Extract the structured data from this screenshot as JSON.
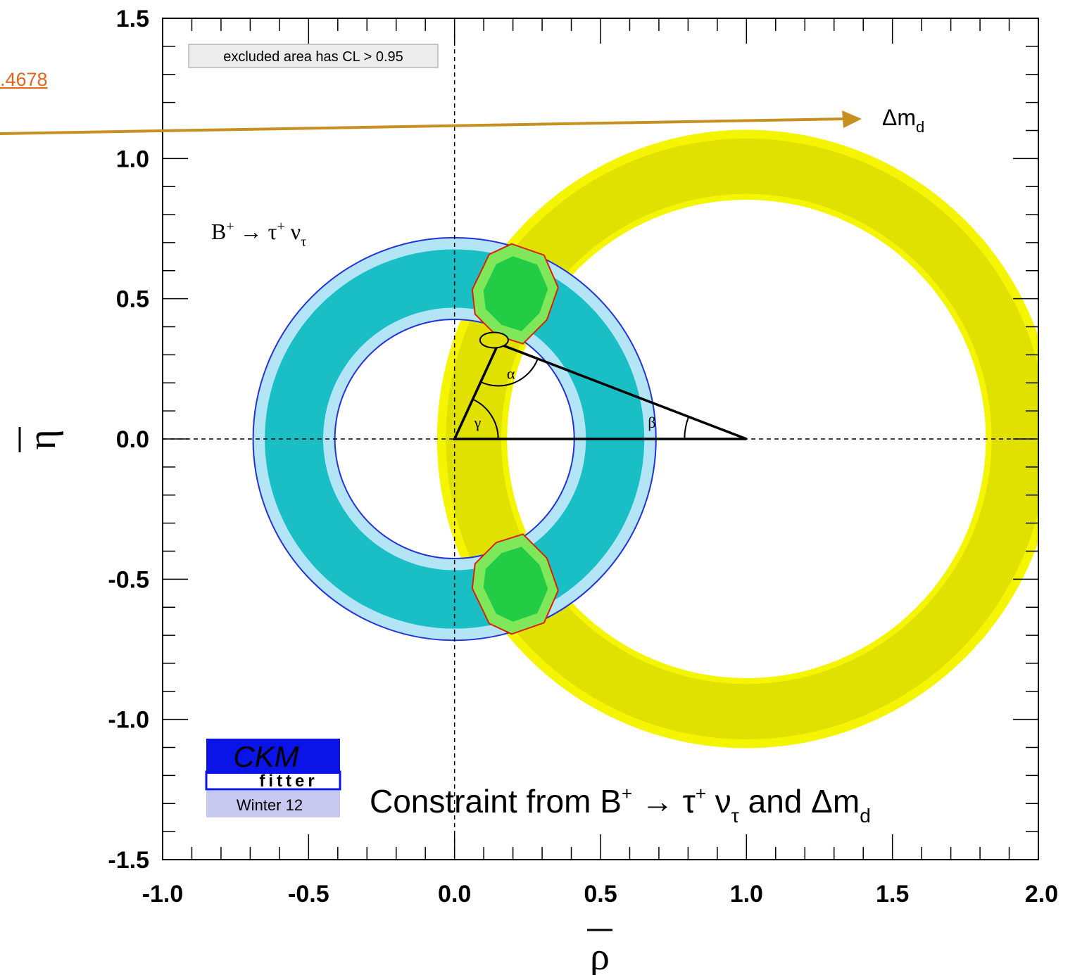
{
  "page": {
    "link_fragment": ".4678"
  },
  "chart_data": {
    "type": "contour",
    "xlabel": "ρ̄",
    "ylabel": "η̄",
    "xlim": [
      -1.0,
      2.0
    ],
    "ylim": [
      -1.5,
      1.5
    ],
    "x_ticks": [
      "-1.0",
      "-0.5",
      "0.0",
      "0.5",
      "1.0",
      "1.5",
      "2.0"
    ],
    "y_ticks": [
      "1.5",
      "1.0",
      "0.5",
      "0.0",
      "-0.5",
      "-1.0",
      "-1.5"
    ],
    "x_tick_values": [
      -1.0,
      -0.5,
      0.0,
      0.5,
      1.0,
      1.5,
      2.0
    ],
    "y_tick_values": [
      1.5,
      1.0,
      0.5,
      0.0,
      -0.5,
      -1.0,
      -1.5
    ],
    "legend_box": "excluded area has CL > 0.95",
    "title": "Constraint from B⁺ → τ⁺ ντ and Δmd",
    "constraints": [
      {
        "name": "B⁺ → τ⁺ ντ",
        "center": [
          0.0,
          0.0
        ],
        "outer_radius": 0.69,
        "inner_radius": 0.41,
        "band_outer": 0.65,
        "band_inner": 0.45,
        "colors": {
          "band": "#19bfc4",
          "halo": "#b3e5f7",
          "edge": "#2233dd"
        }
      },
      {
        "name": "Δmd",
        "center": [
          1.0,
          0.0
        ],
        "outer_radius": 1.06,
        "inner_radius": 0.82,
        "band_outer": 1.03,
        "band_inner": 0.84,
        "colors": {
          "band": "#e1e100",
          "halo": "#f5f500"
        }
      }
    ],
    "apex": {
      "rho": 0.15,
      "eta": 0.34
    },
    "angles": [
      "α",
      "β",
      "γ"
    ],
    "combined_fit_color": "#22cc44",
    "combined_fit_edge": "#dd2200",
    "logo": {
      "line1": "CKM",
      "line2": "fitter",
      "line3": "Winter 12"
    },
    "arrow_label": "Δmd"
  }
}
